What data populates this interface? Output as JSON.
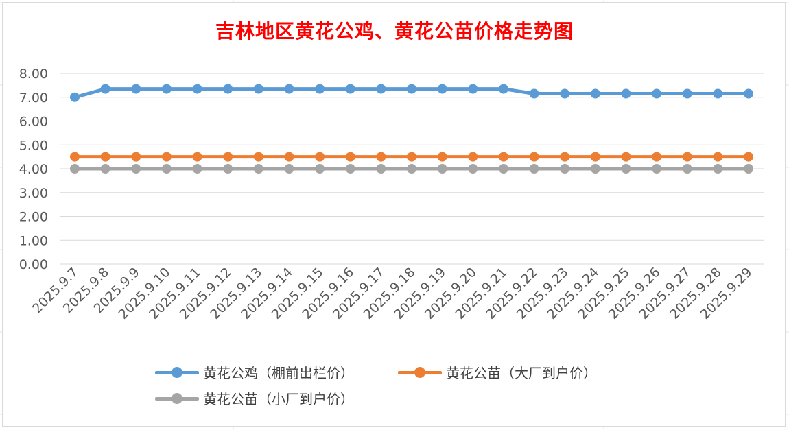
{
  "chart_data": {
    "type": "line",
    "title": "吉林地区黄花公鸡、黄花公苗价格走势图",
    "xlabel": "",
    "ylabel": "",
    "ylim": [
      0,
      8
    ],
    "ytick_step": 1,
    "ytick_decimals": 2,
    "grid": true,
    "legend_position": "bottom",
    "categories": [
      "2025.9.7",
      "2025.9.8",
      "2025.9.9",
      "2025.9.10",
      "2025.9.11",
      "2025.9.12",
      "2025.9.13",
      "2025.9.14",
      "2025.9.15",
      "2025.9.16",
      "2025.9.17",
      "2025.9.18",
      "2025.9.19",
      "2025.9.20",
      "2025.9.21",
      "2025.9.22",
      "2025.9.23",
      "2025.9.24",
      "2025.9.25",
      "2025.9.26",
      "2025.9.27",
      "2025.9.28",
      "2025.9.29"
    ],
    "series": [
      {
        "name": "黄花公鸡（棚前出栏价）",
        "color": "#5b9bd5",
        "values": [
          7.0,
          7.35,
          7.35,
          7.35,
          7.35,
          7.35,
          7.35,
          7.35,
          7.35,
          7.35,
          7.35,
          7.35,
          7.35,
          7.35,
          7.35,
          7.15,
          7.15,
          7.15,
          7.15,
          7.15,
          7.15,
          7.15,
          7.15
        ]
      },
      {
        "name": "黄花公苗（大厂到户价）",
        "color": "#ed7d31",
        "values": [
          4.5,
          4.5,
          4.5,
          4.5,
          4.5,
          4.5,
          4.5,
          4.5,
          4.5,
          4.5,
          4.5,
          4.5,
          4.5,
          4.5,
          4.5,
          4.5,
          4.5,
          4.5,
          4.5,
          4.5,
          4.5,
          4.5,
          4.5
        ]
      },
      {
        "name": "黄花公苗（小厂到户价）",
        "color": "#a5a5a5",
        "values": [
          4.0,
          4.0,
          4.0,
          4.0,
          4.0,
          4.0,
          4.0,
          4.0,
          4.0,
          4.0,
          4.0,
          4.0,
          4.0,
          4.0,
          4.0,
          4.0,
          4.0,
          4.0,
          4.0,
          4.0,
          4.0,
          4.0,
          4.0
        ]
      }
    ]
  }
}
